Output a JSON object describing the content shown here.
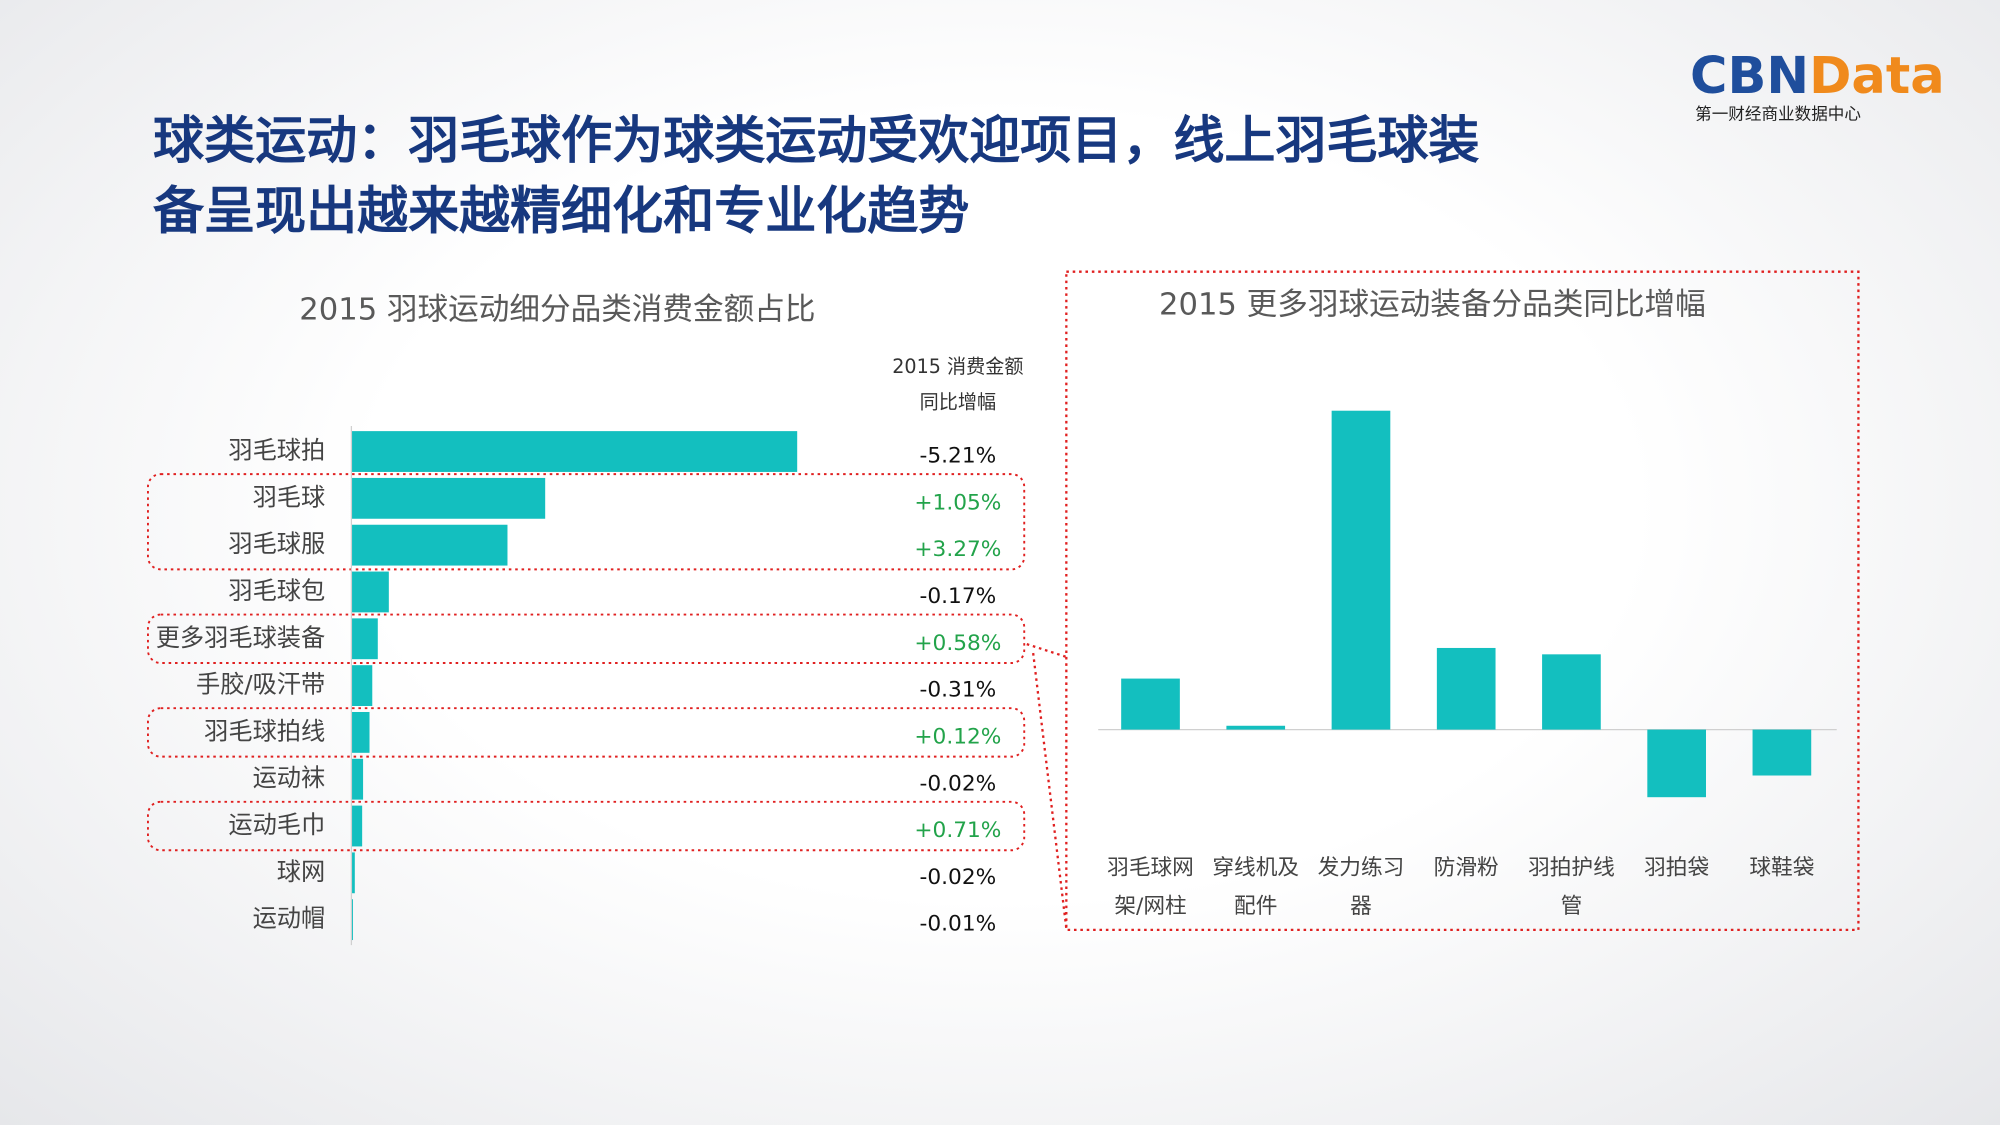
{
  "header": {
    "title_lines": [
      "球类运动：羽毛球作为球类运动受欢迎项目，线上羽毛球装",
      "备呈现出越来越精细化和专业化趋势"
    ],
    "logo_left": "CBN",
    "logo_right": "Data",
    "logo_tagline": "第一财经商业数据中心"
  },
  "chart_data": [
    {
      "type": "hbar",
      "title": "2015 羽球运动细分品类消费金额占比",
      "color": "#13bfbf",
      "categories": [
        "羽毛球拍",
        "羽毛球",
        "羽毛球服",
        "羽毛球包",
        "更多羽毛球装备",
        "手胶/吸汗带",
        "羽毛球拍线",
        "运动袜",
        "运动毛巾",
        "球网",
        "运动帽"
      ],
      "values": [
        48.4,
        21.0,
        16.9,
        4.0,
        2.8,
        2.2,
        1.9,
        1.2,
        1.1,
        0.3,
        0.1
      ],
      "growth_header": [
        "2015 消费金额",
        "同比增幅"
      ],
      "growth": [
        -5.21,
        1.05,
        3.27,
        -0.17,
        0.58,
        -0.31,
        0.12,
        -0.02,
        0.71,
        -0.02,
        -0.01
      ],
      "growth_labels": [
        "-5.21%",
        "+1.05%",
        "+3.27%",
        "-0.17%",
        "+0.58%",
        "-0.31%",
        "+0.12%",
        "-0.02%",
        "+0.71%",
        "-0.02%",
        "-0.01%"
      ],
      "positive_color": "#22a34a",
      "negative_color": "#111111",
      "highlight_groups": [
        [
          1,
          2
        ],
        [
          4
        ],
        [
          6
        ],
        [
          8
        ]
      ]
    },
    {
      "type": "bar",
      "title": "2015 更多羽球运动装备分品类同比增幅",
      "color": "#13bfbf",
      "categories": [
        "羽毛球网架/网柱",
        "穿线机及配件",
        "发力练习器",
        "防滑粉",
        "羽拍护线管",
        "羽拍袋",
        "球鞋袋"
      ],
      "values": [
        40,
        3,
        250,
        64,
        59,
        -53,
        -36
      ]
    }
  ]
}
